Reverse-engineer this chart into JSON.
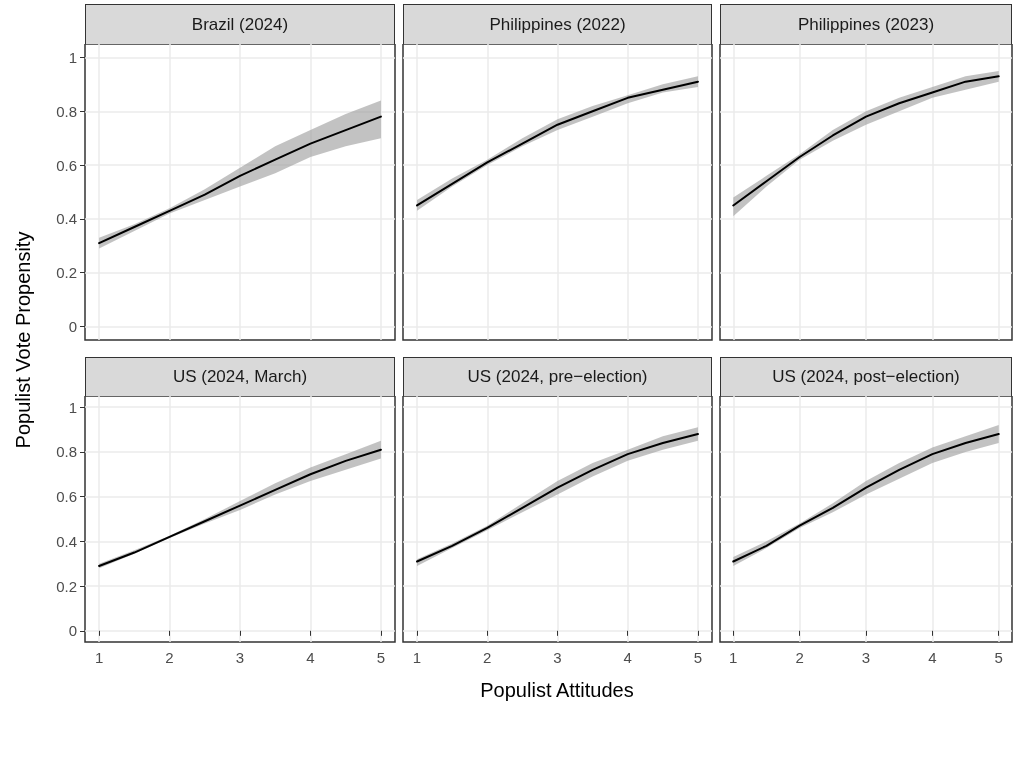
{
  "chart_data": [
    {
      "type": "line",
      "title": "Brazil (2024)",
      "ylabel": "Populist Vote Propensity",
      "x": [
        1,
        1.5,
        2,
        2.5,
        3,
        3.5,
        4,
        4.5,
        5
      ],
      "xlim": [
        0.8,
        5.2
      ],
      "xticks": [
        1,
        2,
        3,
        4,
        5
      ],
      "ylim": [
        -0.05,
        1.05
      ],
      "yticks": [
        0,
        0.2,
        0.4,
        0.6,
        0.8,
        1
      ],
      "grid": true,
      "tick_labels": "y",
      "marker": "none",
      "line_style": "solid",
      "series": [
        {
          "color": "#000000",
          "values": [
            0.31,
            0.37,
            0.43,
            0.49,
            0.56,
            0.62,
            0.68,
            0.73,
            0.78
          ],
          "lower": [
            0.29,
            0.355,
            0.42,
            0.47,
            0.52,
            0.57,
            0.63,
            0.67,
            0.7
          ],
          "upper": [
            0.33,
            0.38,
            0.44,
            0.51,
            0.59,
            0.67,
            0.73,
            0.79,
            0.84
          ]
        }
      ]
    },
    {
      "type": "line",
      "title": "Philippines (2022)",
      "x": [
        1,
        1.5,
        2,
        2.5,
        3,
        3.5,
        4,
        4.5,
        5
      ],
      "xlim": [
        0.8,
        5.2
      ],
      "xticks": [
        1,
        2,
        3,
        4,
        5
      ],
      "ylim": [
        -0.05,
        1.05
      ],
      "yticks": [
        0,
        0.2,
        0.4,
        0.6,
        0.8,
        1
      ],
      "grid": true,
      "tick_labels": false,
      "marker": "none",
      "line_style": "solid",
      "series": [
        {
          "color": "#000000",
          "values": [
            0.45,
            0.53,
            0.61,
            0.68,
            0.75,
            0.8,
            0.85,
            0.88,
            0.91
          ],
          "lower": [
            0.43,
            0.52,
            0.6,
            0.67,
            0.73,
            0.78,
            0.83,
            0.87,
            0.89
          ],
          "upper": [
            0.47,
            0.55,
            0.62,
            0.7,
            0.77,
            0.82,
            0.86,
            0.9,
            0.93
          ]
        }
      ]
    },
    {
      "type": "line",
      "title": "Philippines (2023)",
      "x": [
        1,
        1.5,
        2,
        2.5,
        3,
        3.5,
        4,
        4.5,
        5
      ],
      "xlim": [
        0.8,
        5.2
      ],
      "xticks": [
        1,
        2,
        3,
        4,
        5
      ],
      "ylim": [
        -0.05,
        1.05
      ],
      "yticks": [
        0,
        0.2,
        0.4,
        0.6,
        0.8,
        1
      ],
      "grid": true,
      "tick_labels": false,
      "marker": "none",
      "line_style": "solid",
      "series": [
        {
          "color": "#000000",
          "values": [
            0.45,
            0.54,
            0.63,
            0.71,
            0.78,
            0.83,
            0.87,
            0.91,
            0.93
          ],
          "lower": [
            0.41,
            0.52,
            0.62,
            0.69,
            0.75,
            0.8,
            0.85,
            0.88,
            0.91
          ],
          "upper": [
            0.48,
            0.56,
            0.64,
            0.73,
            0.8,
            0.85,
            0.89,
            0.93,
            0.95
          ]
        }
      ]
    },
    {
      "type": "line",
      "title": "US (2024, March)",
      "x": [
        1,
        1.5,
        2,
        2.5,
        3,
        3.5,
        4,
        4.5,
        5
      ],
      "xlim": [
        0.8,
        5.2
      ],
      "xticks": [
        1,
        2,
        3,
        4,
        5
      ],
      "ylim": [
        -0.05,
        1.05
      ],
      "yticks": [
        0,
        0.2,
        0.4,
        0.6,
        0.8,
        1
      ],
      "grid": true,
      "marker": "none",
      "line_style": "solid",
      "series": [
        {
          "color": "#000000",
          "values": [
            0.29,
            0.35,
            0.42,
            0.49,
            0.56,
            0.63,
            0.7,
            0.76,
            0.81
          ],
          "lower": [
            0.28,
            0.345,
            0.415,
            0.48,
            0.54,
            0.61,
            0.67,
            0.72,
            0.77
          ],
          "upper": [
            0.3,
            0.36,
            0.425,
            0.5,
            0.58,
            0.66,
            0.73,
            0.79,
            0.85
          ]
        }
      ]
    },
    {
      "type": "line",
      "title": "US (2024, pre−election)",
      "xlabel": "Populist Attitudes",
      "x": [
        1,
        1.5,
        2,
        2.5,
        3,
        3.5,
        4,
        4.5,
        5
      ],
      "xlim": [
        0.8,
        5.2
      ],
      "xticks": [
        1,
        2,
        3,
        4,
        5
      ],
      "ylim": [
        -0.05,
        1.05
      ],
      "yticks": [
        0,
        0.2,
        0.4,
        0.6,
        0.8,
        1
      ],
      "grid": true,
      "tick_labels": "x",
      "marker": "none",
      "line_style": "solid",
      "series": [
        {
          "color": "#000000",
          "values": [
            0.31,
            0.38,
            0.46,
            0.55,
            0.64,
            0.72,
            0.79,
            0.84,
            0.88
          ],
          "lower": [
            0.29,
            0.37,
            0.45,
            0.53,
            0.61,
            0.69,
            0.76,
            0.81,
            0.85
          ],
          "upper": [
            0.32,
            0.39,
            0.47,
            0.57,
            0.67,
            0.75,
            0.81,
            0.87,
            0.91
          ]
        }
      ]
    },
    {
      "type": "line",
      "title": "US (2024, post−election)",
      "x": [
        1,
        1.5,
        2,
        2.5,
        3,
        3.5,
        4,
        4.5,
        5
      ],
      "xlim": [
        0.8,
        5.2
      ],
      "xticks": [
        1,
        2,
        3,
        4,
        5
      ],
      "ylim": [
        -0.05,
        1.05
      ],
      "yticks": [
        0,
        0.2,
        0.4,
        0.6,
        0.8,
        1
      ],
      "grid": true,
      "tick_labels": "x",
      "marker": "none",
      "line_style": "solid",
      "series": [
        {
          "color": "#000000",
          "values": [
            0.31,
            0.38,
            0.47,
            0.55,
            0.64,
            0.72,
            0.79,
            0.84,
            0.88
          ],
          "lower": [
            0.29,
            0.37,
            0.46,
            0.53,
            0.61,
            0.68,
            0.75,
            0.8,
            0.84
          ],
          "upper": [
            0.33,
            0.4,
            0.48,
            0.57,
            0.67,
            0.75,
            0.82,
            0.87,
            0.92
          ]
        }
      ]
    }
  ]
}
